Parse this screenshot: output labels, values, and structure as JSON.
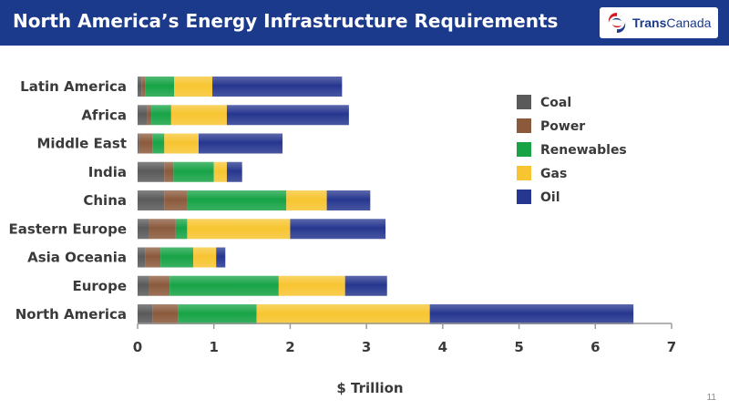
{
  "header": {
    "title": "North America’s Energy Infrastructure Requirements",
    "logo_text_bold": "Trans",
    "logo_text_regular": "Canada"
  },
  "page_number": "11",
  "chart_data": {
    "type": "bar",
    "orientation": "horizontal",
    "stacked": true,
    "categories": [
      "Latin America",
      "Africa",
      "Middle East",
      "India",
      "China",
      "Eastern Europe",
      "Asia Oceania",
      "Europe",
      "North America"
    ],
    "series": [
      {
        "name": "Coal",
        "color": "#5a5a5a",
        "values": [
          0.05,
          0.12,
          0.02,
          0.35,
          0.35,
          0.15,
          0.1,
          0.15,
          0.2
        ]
      },
      {
        "name": "Power",
        "color": "#8b5a3c",
        "values": [
          0.05,
          0.06,
          0.18,
          0.12,
          0.3,
          0.35,
          0.2,
          0.27,
          0.33
        ]
      },
      {
        "name": "Renewables",
        "color": "#17a346",
        "values": [
          0.38,
          0.26,
          0.15,
          0.53,
          1.3,
          0.15,
          0.43,
          1.43,
          1.03
        ]
      },
      {
        "name": "Gas",
        "color": "#f7c531",
        "values": [
          0.5,
          0.73,
          0.45,
          0.17,
          0.53,
          1.35,
          0.3,
          0.87,
          2.27
        ]
      },
      {
        "name": "Oil",
        "color": "#27378f",
        "values": [
          1.7,
          1.6,
          1.1,
          0.2,
          0.57,
          1.25,
          0.12,
          0.55,
          2.67
        ]
      }
    ],
    "xlabel": "$ Trillion",
    "xlim": [
      0,
      7
    ],
    "xticks": [
      "0",
      "1",
      "2",
      "3",
      "4",
      "5",
      "6",
      "7"
    ],
    "legend_position": "right",
    "grid": false
  }
}
